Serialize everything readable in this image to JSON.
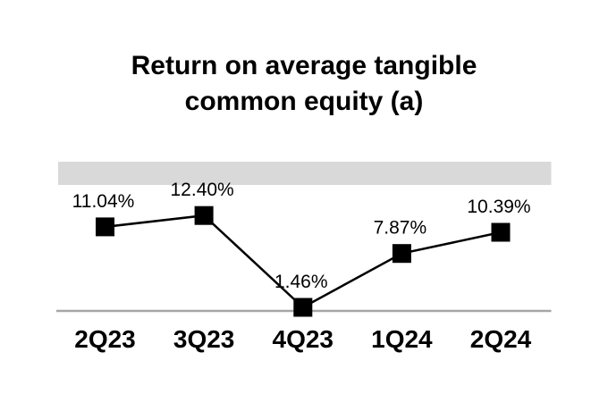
{
  "title": {
    "text": "Return on average tangible common equity (a)"
  },
  "chart_data": {
    "type": "line",
    "title": "Return on average tangible common equity (a)",
    "categories": [
      "2Q23",
      "3Q23",
      "4Q23",
      "1Q24",
      "2Q24"
    ],
    "values": [
      11.04,
      12.4,
      1.46,
      7.87,
      10.39
    ],
    "data_labels": [
      "11.04%",
      "12.40%",
      "1.46%",
      "7.87%",
      "10.39%"
    ],
    "xlabel": "",
    "ylabel": "",
    "ylim": [
      0,
      18.8
    ],
    "grid": false,
    "legend": false,
    "marker_shape": "square",
    "colors": {
      "line": "#000000",
      "marker": "#000000",
      "axis_line": "#a6a6a6",
      "band": "#d9d9d9",
      "background": "#ffffff",
      "text": "#000000"
    }
  }
}
